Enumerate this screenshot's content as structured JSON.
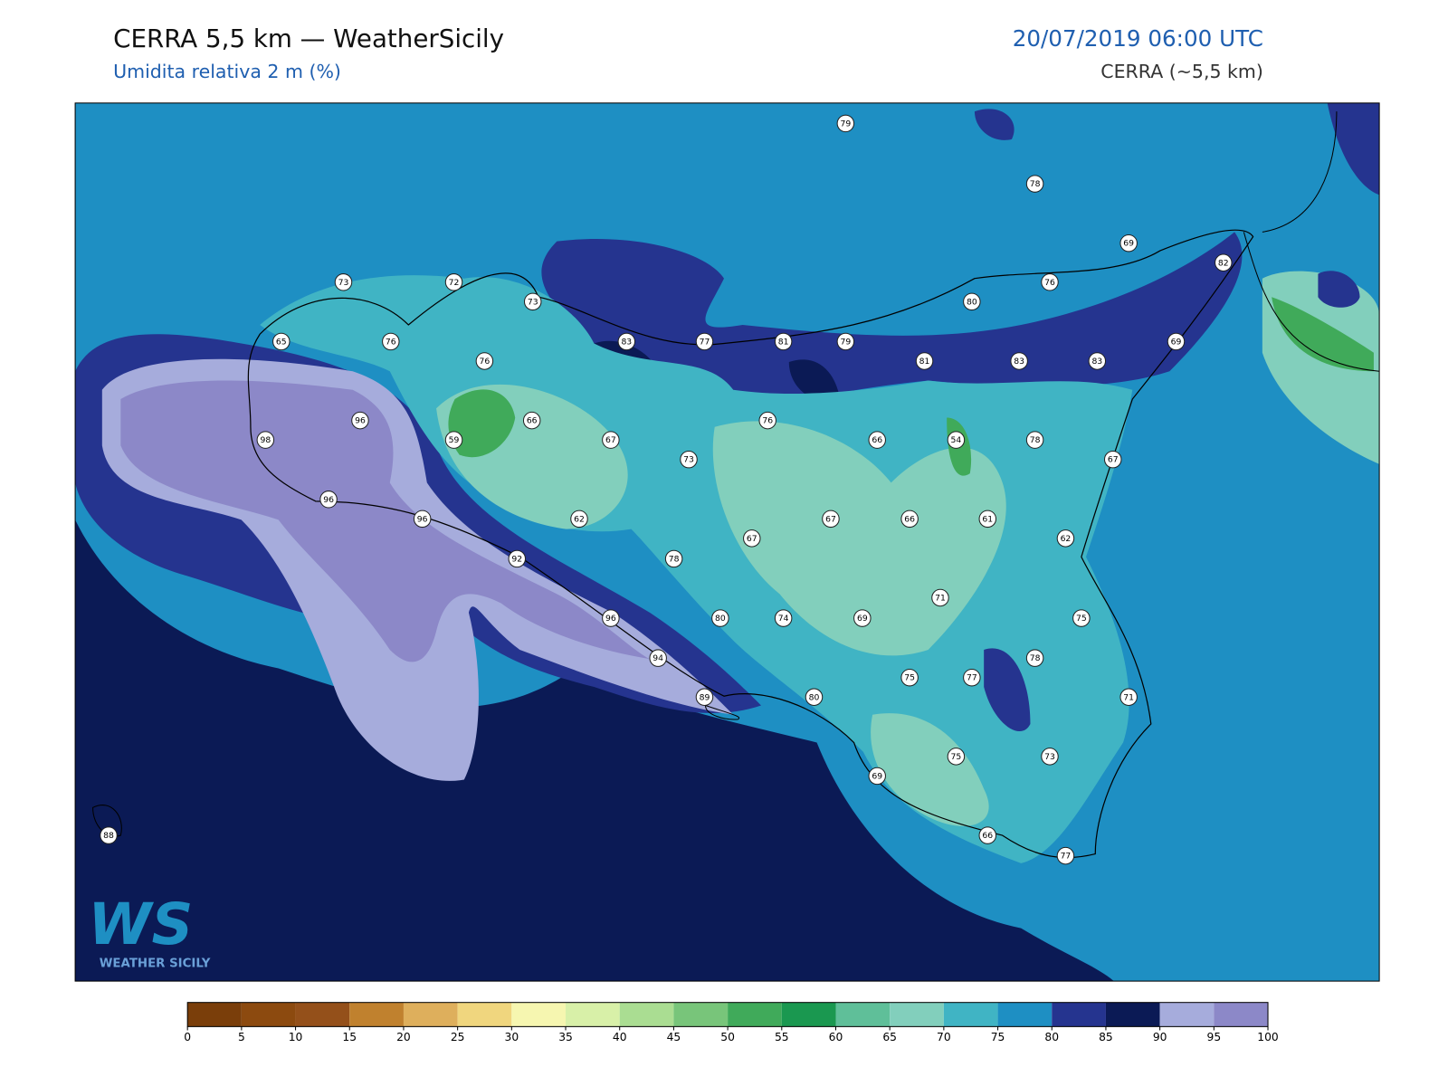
{
  "header": {
    "title": "CERRA 5,5 km — WeatherSicily",
    "subtitle": "Umidita relativa 2 m (%)",
    "datetime": "20/07/2019 06:00 UTC",
    "model": "CERRA (~5,5 km)"
  },
  "stations": [
    79,
    78,
    69,
    82,
    73,
    72,
    73,
    76,
    80,
    65,
    76,
    83,
    77,
    81,
    79,
    69,
    76,
    81,
    83,
    83,
    96,
    66,
    76,
    98,
    59,
    67,
    66,
    54,
    78,
    73,
    67,
    96,
    96,
    62,
    67,
    66,
    61,
    67,
    62,
    92,
    78,
    71,
    96,
    80,
    74,
    69,
    75,
    94,
    78,
    75,
    77,
    71,
    89,
    80,
    75,
    73,
    69,
    88,
    66,
    77
  ],
  "colorbar": {
    "ticks": [
      0,
      5,
      10,
      15,
      20,
      25,
      30,
      35,
      40,
      45,
      50,
      55,
      60,
      65,
      70,
      75,
      80,
      85,
      90,
      95,
      100
    ],
    "colors": [
      "#7a3e0a",
      "#8c4a0f",
      "#94501a",
      "#c0812e",
      "#deaf5c",
      "#f0d67e",
      "#f6f6b0",
      "#d8f0a8",
      "#aadd92",
      "#78c57a",
      "#40aa5a",
      "#1a9850",
      "#5fbf99",
      "#82cfbc",
      "#40b4c4",
      "#1e8fc3",
      "#25348f",
      "#0b1a55",
      "#a6acdc",
      "#8c88c8"
    ]
  },
  "logo": {
    "mark": "WS",
    "tagline": "WEATHER SICILY"
  }
}
